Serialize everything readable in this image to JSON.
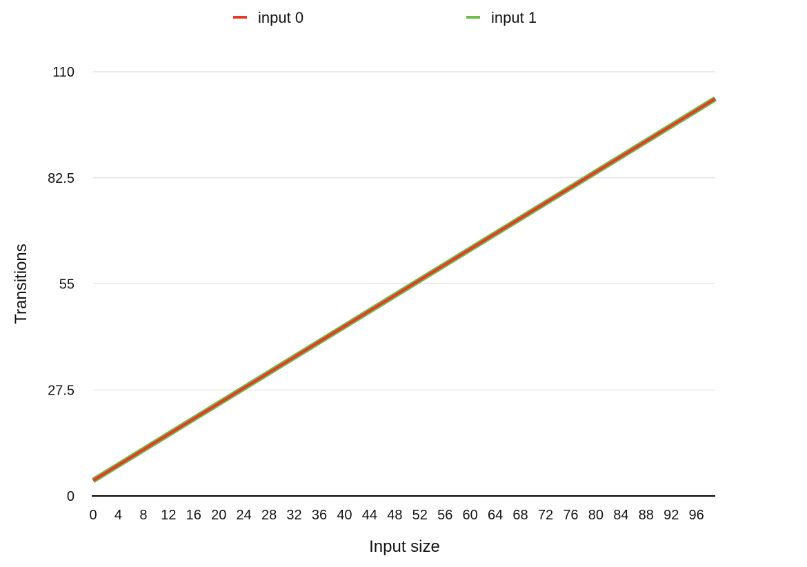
{
  "chart_data": {
    "type": "line",
    "title": "",
    "xlabel": "Input size",
    "ylabel": "Transitions",
    "xlim": [
      0,
      99
    ],
    "ylim": [
      0,
      110
    ],
    "x_ticks": [
      0,
      4,
      8,
      12,
      16,
      20,
      24,
      28,
      32,
      36,
      40,
      44,
      48,
      52,
      56,
      60,
      64,
      68,
      72,
      76,
      80,
      84,
      88,
      92,
      96
    ],
    "y_ticks": [
      0,
      27.5,
      55,
      82.5,
      110
    ],
    "y_tick_labels": [
      "0",
      "27.5",
      "55",
      "82.5",
      "110"
    ],
    "grid": "horizontal",
    "legend_position": "top",
    "series": [
      {
        "name": "input 0",
        "color": "#e8392b",
        "x": [
          0,
          99
        ],
        "y": [
          4,
          103
        ]
      },
      {
        "name": "input 1",
        "color": "#6cbd45",
        "x": [
          0,
          99
        ],
        "y": [
          4,
          103
        ]
      }
    ]
  }
}
